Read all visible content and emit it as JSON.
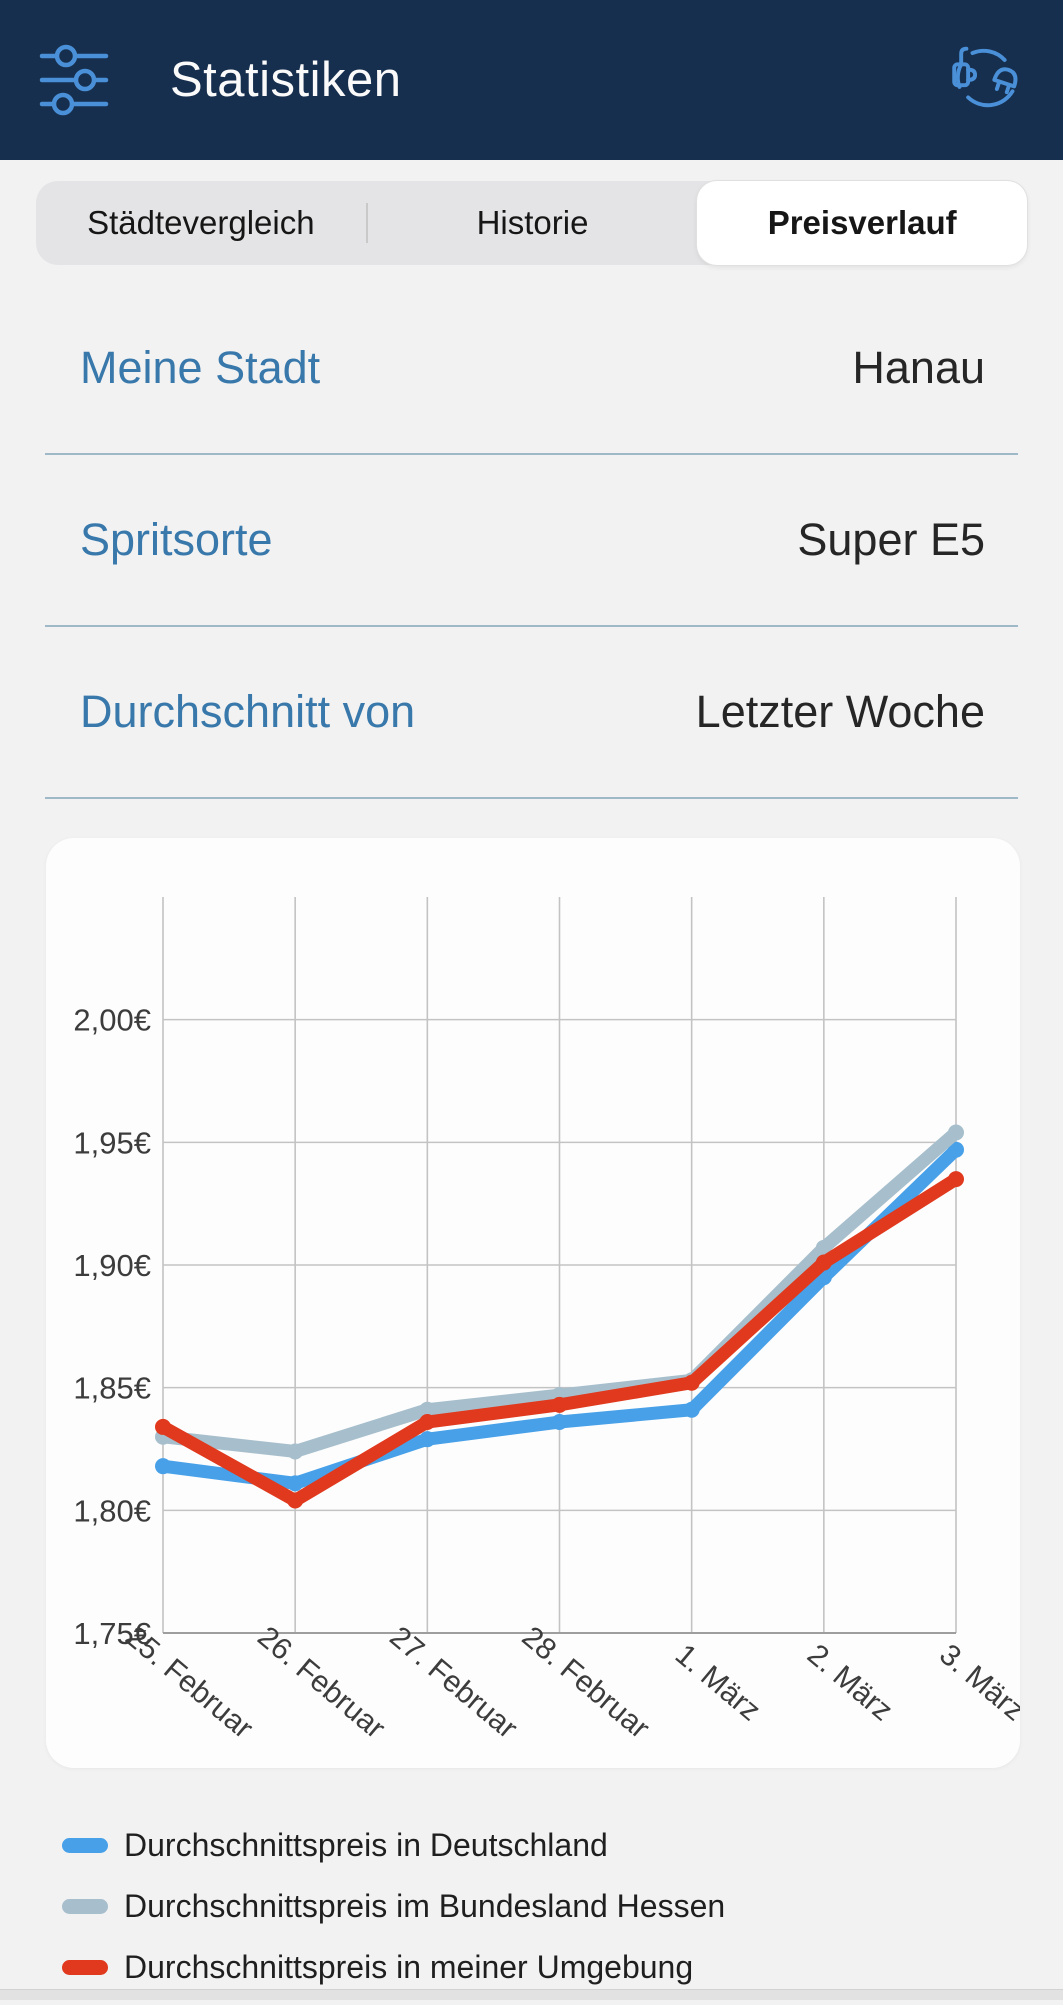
{
  "header": {
    "title": "Statistiken",
    "bg_color": "#172f4e",
    "icon_color": "#4a90d9",
    "left_icon": "sliders-filter-icon",
    "right_icon": "charging-cable-icon"
  },
  "tabs": [
    {
      "label": "Städtevergleich",
      "active": false
    },
    {
      "label": "Historie",
      "active": false
    },
    {
      "label": "Preisverlauf",
      "active": true
    }
  ],
  "settings_rows": [
    {
      "label": "Meine Stadt",
      "value": "Hanau"
    },
    {
      "label": "Spritsorte",
      "value": "Super E5"
    },
    {
      "label": "Durchschnitt von",
      "value": "Letzter Woche"
    }
  ],
  "chart_data": {
    "type": "line",
    "categories": [
      "25. Februar",
      "26. Februar",
      "27. Februar",
      "28. Februar",
      "1. März",
      "2. März",
      "3. März"
    ],
    "series": [
      {
        "name": "Durchschnittspreis in Deutschland",
        "color": "#47a0e8",
        "values": [
          1.818,
          1.811,
          1.829,
          1.836,
          1.841,
          1.895,
          1.947
        ]
      },
      {
        "name": "Durchschnittspreis im Bundesland Hessen",
        "color": "#a7bfcc",
        "values": [
          1.83,
          1.824,
          1.841,
          1.847,
          1.853,
          1.907,
          1.954
        ]
      },
      {
        "name": "Durchschnittspreis in meiner Umgebung",
        "color": "#e0391d",
        "values": [
          1.834,
          1.804,
          1.836,
          1.843,
          1.852,
          1.901,
          1.935
        ]
      }
    ],
    "ylim": [
      1.75,
      2.05
    ],
    "yticks": [
      {
        "v": 1.75,
        "label": "1,75€"
      },
      {
        "v": 1.8,
        "label": "1,80€"
      },
      {
        "v": 1.85,
        "label": "1,85€"
      },
      {
        "v": 1.9,
        "label": "1,90€"
      },
      {
        "v": 1.95,
        "label": "1,95€"
      },
      {
        "v": 2.0,
        "label": "2,00€"
      }
    ],
    "grid": true,
    "legend_position": "bottom",
    "grid_color": "#c3c3c3",
    "axis_color": "#9e9e9e",
    "tick_text_color": "#3c3c3c"
  }
}
